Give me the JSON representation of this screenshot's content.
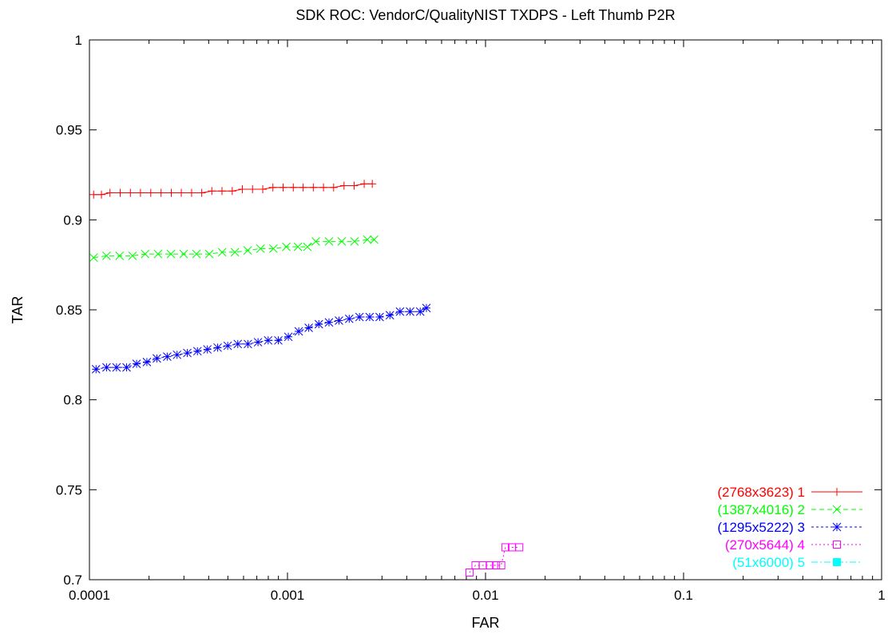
{
  "chart_data": {
    "type": "line",
    "title": "SDK ROC: VendorC/QualityNIST TXDPS - Left Thumb P2R",
    "xlabel": "FAR",
    "ylabel": "TAR",
    "xscale": "log",
    "xlim": [
      0.0001,
      1
    ],
    "ylim": [
      0.7,
      1
    ],
    "grid": false,
    "legend_position": "bottom-right",
    "x_ticks": [
      {
        "value": 0.0001,
        "label": "0.0001"
      },
      {
        "value": 0.001,
        "label": "0.001"
      },
      {
        "value": 0.01,
        "label": "0.01"
      },
      {
        "value": 0.1,
        "label": "0.1"
      },
      {
        "value": 1,
        "label": "1"
      }
    ],
    "y_ticks": [
      {
        "value": 0.7,
        "label": "0.7"
      },
      {
        "value": 0.75,
        "label": "0.75"
      },
      {
        "value": 0.8,
        "label": "0.8"
      },
      {
        "value": 0.85,
        "label": "0.85"
      },
      {
        "value": 0.9,
        "label": "0.9"
      },
      {
        "value": 0.95,
        "label": "0.95"
      },
      {
        "value": 1,
        "label": "1"
      }
    ],
    "series": [
      {
        "name": "(2768x3623) 1",
        "color": "#ff0000",
        "marker": "plus",
        "dash": "",
        "points": [
          [
            0.000105,
            0.914
          ],
          [
            0.000115,
            0.914
          ],
          [
            0.000127,
            0.915
          ],
          [
            0.000143,
            0.915
          ],
          [
            0.000161,
            0.915
          ],
          [
            0.000181,
            0.915
          ],
          [
            0.000204,
            0.915
          ],
          [
            0.00023,
            0.915
          ],
          [
            0.000259,
            0.915
          ],
          [
            0.000291,
            0.915
          ],
          [
            0.000328,
            0.915
          ],
          [
            0.000369,
            0.915
          ],
          [
            0.000415,
            0.916
          ],
          [
            0.000467,
            0.916
          ],
          [
            0.000526,
            0.916
          ],
          [
            0.000592,
            0.917
          ],
          [
            0.000666,
            0.917
          ],
          [
            0.00075,
            0.917
          ],
          [
            0.000844,
            0.918
          ],
          [
            0.00095,
            0.918
          ],
          [
            0.00107,
            0.918
          ],
          [
            0.0012,
            0.918
          ],
          [
            0.00135,
            0.918
          ],
          [
            0.00152,
            0.918
          ],
          [
            0.00171,
            0.918
          ],
          [
            0.00193,
            0.919
          ],
          [
            0.00217,
            0.919
          ],
          [
            0.00244,
            0.92
          ],
          [
            0.00268,
            0.92
          ]
        ]
      },
      {
        "name": "(1387x4016) 2",
        "color": "#00ff00",
        "marker": "cross",
        "dash": "6,4",
        "points": [
          [
            0.000105,
            0.879
          ],
          [
            0.000122,
            0.88
          ],
          [
            0.000142,
            0.88
          ],
          [
            0.000165,
            0.88
          ],
          [
            0.000191,
            0.881
          ],
          [
            0.000222,
            0.881
          ],
          [
            0.000258,
            0.881
          ],
          [
            0.000299,
            0.881
          ],
          [
            0.000347,
            0.881
          ],
          [
            0.000403,
            0.881
          ],
          [
            0.000468,
            0.882
          ],
          [
            0.000543,
            0.882
          ],
          [
            0.00063,
            0.883
          ],
          [
            0.000731,
            0.884
          ],
          [
            0.000849,
            0.884
          ],
          [
            0.000986,
            0.885
          ],
          [
            0.00113,
            0.885
          ],
          [
            0.00126,
            0.885
          ],
          [
            0.00139,
            0.888
          ],
          [
            0.00162,
            0.888
          ],
          [
            0.00188,
            0.888
          ],
          [
            0.00218,
            0.888
          ],
          [
            0.00253,
            0.889
          ],
          [
            0.00274,
            0.889
          ]
        ]
      },
      {
        "name": "(1295x5222) 3",
        "color": "#0000ff",
        "marker": "star",
        "dash": "3,3",
        "points": [
          [
            0.000108,
            0.817
          ],
          [
            0.000122,
            0.818
          ],
          [
            0.000137,
            0.818
          ],
          [
            0.000154,
            0.818
          ],
          [
            0.000173,
            0.82
          ],
          [
            0.000195,
            0.821
          ],
          [
            0.000219,
            0.823
          ],
          [
            0.000247,
            0.824
          ],
          [
            0.000277,
            0.825
          ],
          [
            0.000312,
            0.826
          ],
          [
            0.000351,
            0.827
          ],
          [
            0.000394,
            0.828
          ],
          [
            0.000444,
            0.829
          ],
          [
            0.000499,
            0.83
          ],
          [
            0.000561,
            0.831
          ],
          [
            0.000631,
            0.831
          ],
          [
            0.00071,
            0.832
          ],
          [
            0.000799,
            0.833
          ],
          [
            0.000899,
            0.833
          ],
          [
            0.00101,
            0.835
          ],
          [
            0.00114,
            0.838
          ],
          [
            0.00128,
            0.84
          ],
          [
            0.00144,
            0.842
          ],
          [
            0.00162,
            0.843
          ],
          [
            0.00182,
            0.844
          ],
          [
            0.00205,
            0.845
          ],
          [
            0.00231,
            0.846
          ],
          [
            0.0026,
            0.846
          ],
          [
            0.00292,
            0.846
          ],
          [
            0.00329,
            0.847
          ],
          [
            0.0037,
            0.849
          ],
          [
            0.00416,
            0.849
          ],
          [
            0.00468,
            0.849
          ],
          [
            0.00503,
            0.851
          ]
        ]
      },
      {
        "name": "(270x5644) 4",
        "color": "#ff00ff",
        "marker": "square",
        "dash": "2,3",
        "points": [
          [
            0.0083,
            0.704
          ],
          [
            0.0089,
            0.708
          ],
          [
            0.0097,
            0.708
          ],
          [
            0.0105,
            0.708
          ],
          [
            0.0113,
            0.708
          ],
          [
            0.012,
            0.708
          ],
          [
            0.0126,
            0.718
          ],
          [
            0.0136,
            0.718
          ],
          [
            0.0148,
            0.718
          ]
        ]
      },
      {
        "name": "(51x6000) 5",
        "color": "#00ffff",
        "marker": "filled-square",
        "dash": "8,3,2,3",
        "points": []
      }
    ]
  }
}
